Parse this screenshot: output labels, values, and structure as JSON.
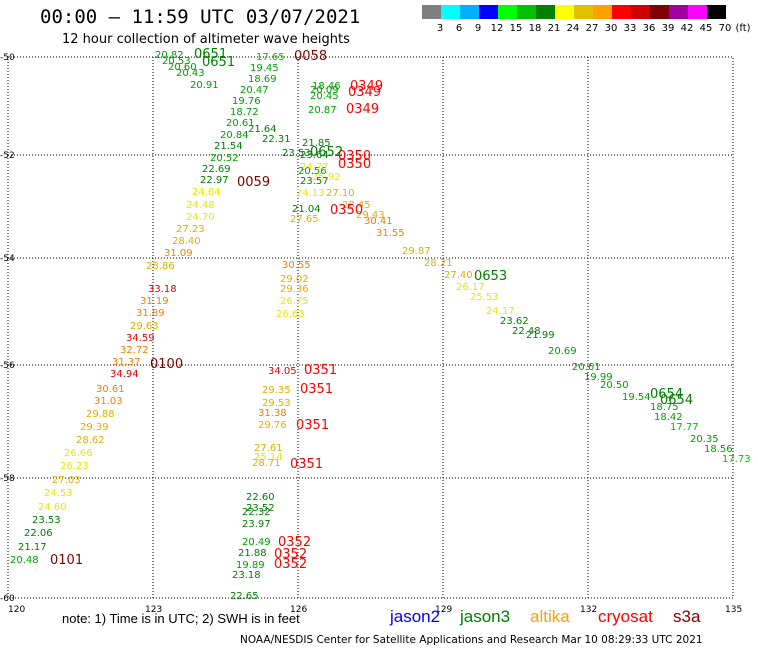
{
  "header": {
    "title": "00:00 — 11:59 UTC 03/07/2021",
    "subtitle": "12 hour collection of altimeter wave heights"
  },
  "colorbar": {
    "unit": "(ft)",
    "levels": [
      {
        "label": "3",
        "color": "#7f7f7f"
      },
      {
        "label": "6",
        "color": "#00ffff"
      },
      {
        "label": "9",
        "color": "#00b0ff"
      },
      {
        "label": "12",
        "color": "#0000ff"
      },
      {
        "label": "15",
        "color": "#00ff00"
      },
      {
        "label": "18",
        "color": "#00c000"
      },
      {
        "label": "21",
        "color": "#008000"
      },
      {
        "label": "24",
        "color": "#ffff00"
      },
      {
        "label": "27",
        "color": "#e0c000"
      },
      {
        "label": "30",
        "color": "#ffa000"
      },
      {
        "label": "33",
        "color": "#ff0000"
      },
      {
        "label": "36",
        "color": "#d00000"
      },
      {
        "label": "39",
        "color": "#800000"
      },
      {
        "label": "42",
        "color": "#a000a0"
      },
      {
        "label": "45",
        "color": "#ff00ff"
      },
      {
        "label": "70",
        "color": "#000000"
      }
    ]
  },
  "axes": {
    "lon_ticks": [
      "120",
      "123",
      "126",
      "129",
      "132",
      "135"
    ],
    "lat_ticks": [
      "-50",
      "-52",
      "-54",
      "-56",
      "-58",
      "-60"
    ]
  },
  "map": {
    "track_a_values": [
      "20.48",
      "21.17",
      "22.06",
      "23.53",
      "24.60",
      "24.53",
      "27.03",
      "26.23",
      "26.66",
      "28.62",
      "29.39",
      "29.88",
      "31.03",
      "30.61",
      "34.94",
      "31.37",
      "32.72",
      "34.59",
      "29.63",
      "31.89",
      "31.19",
      "33.18",
      "28.86",
      "31.09",
      "28.40",
      "27.23",
      "24.70",
      "24.48",
      "24.64",
      "22.97",
      "22.69",
      "20.52",
      "21.54",
      "20.84",
      "20.61",
      "18.72",
      "19.76",
      "20.47",
      "18.69",
      "19.45",
      "17.65"
    ],
    "track_b_values": [
      "20.82",
      "20.53",
      "20.60",
      "20.43",
      "20.91",
      "21.64",
      "22.31",
      "23.53",
      "24.77",
      "25.92",
      "27.10",
      "28.45",
      "29.43",
      "30.41",
      "31.55",
      "29.87",
      "28.21",
      "27.40",
      "26.17",
      "25.53",
      "24.17",
      "23.62",
      "22.48",
      "21.99",
      "20.69",
      "20.61",
      "19.99",
      "20.50",
      "19.54",
      "18.75",
      "18.42",
      "17.77",
      "20.35",
      "18.56",
      "17.73"
    ],
    "track_c_values": [
      "18.46",
      "20.09",
      "20.45",
      "20.87",
      "20.56",
      "21.85",
      "23.64",
      "24.13",
      "23.57",
      "21.04",
      "27.65"
    ],
    "track_d_values": [
      "30.55",
      "29.02",
      "29.36",
      "26.75",
      "26.63",
      "34.05",
      "29.35",
      "29.53",
      "31.38",
      "29.76",
      "27.61",
      "25.14",
      "28.71",
      "22.60",
      "23.52",
      "22.32",
      "23.97",
      "20.49",
      "21.88",
      "19.89",
      "23.18",
      "22.65"
    ],
    "pass_labels": [
      {
        "text": "0651",
        "color": "#008000"
      },
      {
        "text": "0651",
        "color": "#008000"
      },
      {
        "text": "0058",
        "color": "#800000"
      },
      {
        "text": "0349",
        "color": "#ff0000"
      },
      {
        "text": "0349",
        "color": "#ff0000"
      },
      {
        "text": "0349",
        "color": "#ff0000"
      },
      {
        "text": "0652",
        "color": "#008000"
      },
      {
        "text": "0350",
        "color": "#ff0000"
      },
      {
        "text": "0350",
        "color": "#ff0000"
      },
      {
        "text": "0059",
        "color": "#800000"
      },
      {
        "text": "0350",
        "color": "#ff0000"
      },
      {
        "text": "0653",
        "color": "#008000"
      },
      {
        "text": "0100",
        "color": "#800000"
      },
      {
        "text": "0351",
        "color": "#ff0000"
      },
      {
        "text": "0351",
        "color": "#ff0000"
      },
      {
        "text": "0351",
        "color": "#ff0000"
      },
      {
        "text": "0351",
        "color": "#ff0000"
      },
      {
        "text": "0654",
        "color": "#008000"
      },
      {
        "text": "0654",
        "color": "#008000"
      },
      {
        "text": "0352",
        "color": "#ff0000"
      },
      {
        "text": "0352",
        "color": "#ff0000"
      },
      {
        "text": "0352",
        "color": "#ff0000"
      },
      {
        "text": "0101",
        "color": "#800000"
      }
    ]
  },
  "footer": {
    "note": "note: 1) Time is in UTC; 2) SWH is in feet",
    "missions": [
      {
        "name": "jason2",
        "color": "#0000ff"
      },
      {
        "name": "jason3",
        "color": "#008000"
      },
      {
        "name": "altika",
        "color": "#ffa000"
      },
      {
        "name": "cryosat",
        "color": "#ff0000"
      },
      {
        "name": "s3a",
        "color": "#800000"
      }
    ],
    "credit": "NOAA/NESDIS Center for Satellite Applications and Research    Mar 10 08:29:33 UTC 2021"
  }
}
